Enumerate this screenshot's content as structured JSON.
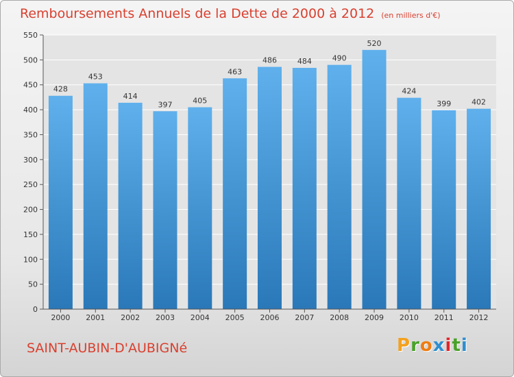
{
  "header": {
    "title": "Remboursements Annuels de la Dette de 2000 à 2012",
    "unit": "(en milliers d'€)"
  },
  "footer": {
    "commune": "SAINT-AUBIN-D'AUBIGNé",
    "logo": "Proxiti",
    "logo_colors": [
      "#f3a11d",
      "#49a12a",
      "#ef7d12",
      "#2d8fd0",
      "#e0262c",
      "#49a12a",
      "#2d8fd0"
    ]
  },
  "colors": {
    "bar_top": "#5fb0ec",
    "bar_bottom": "#2a78b8",
    "title": "#d9402f",
    "grid": "#ffffff"
  },
  "chart_data": {
    "type": "bar",
    "title": "Remboursements Annuels de la Dette de 2000 à 2012",
    "ylabel": "",
    "xlabel": "",
    "ylim": [
      0,
      550
    ],
    "yticks": [
      0,
      50,
      100,
      150,
      200,
      250,
      300,
      350,
      400,
      450,
      500,
      550
    ],
    "grid": true,
    "categories": [
      "2000",
      "2001",
      "2002",
      "2003",
      "2004",
      "2005",
      "2006",
      "2007",
      "2008",
      "2009",
      "2010",
      "2011",
      "2012"
    ],
    "values": [
      428,
      453,
      414,
      397,
      405,
      463,
      486,
      484,
      490,
      520,
      424,
      399,
      402
    ]
  }
}
